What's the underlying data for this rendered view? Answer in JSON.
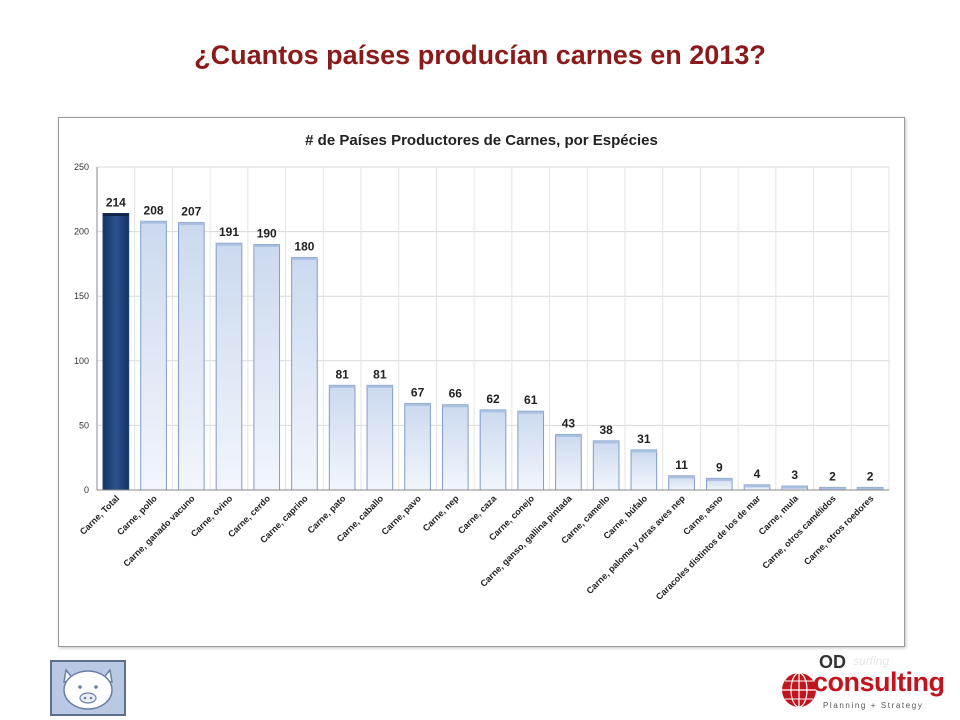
{
  "page": {
    "title": "¿Cuantos países producían carnes en 2013?"
  },
  "logos": {
    "brand_prefix": "OD",
    "brand_name": "consulting",
    "tagline": "Planning + Strategy",
    "faint_text": "surfing",
    "pig_icon": "pig-face-icon",
    "globe_icon": "globe-icon"
  },
  "colors": {
    "title": "#8b1a1a",
    "highlight_bar": "#1f3f73",
    "bar_top": "#cbd9ef",
    "bar_bottom": "#f2f6fc",
    "bar_stroke": "#7f9cc8",
    "brand_red": "#c0151f"
  },
  "chart_data": {
    "type": "bar",
    "title": "# de Países Productores de Carnes, por Espécies",
    "xlabel": "",
    "ylabel": "",
    "ylim": [
      0,
      250
    ],
    "yticks": [
      0,
      50,
      100,
      150,
      200,
      250
    ],
    "grid": true,
    "legend": "none",
    "highlight_index": 0,
    "categories": [
      "Carne, Total",
      "Carne, pollo",
      "Carne, ganado vacuno",
      "Carne, ovino",
      "Carne, cerdo",
      "Carne, caprino",
      "Carne, pato",
      "Carne, caballo",
      "Carne, pavo",
      "Carne, nep",
      "Carne, caza",
      "Carne, conejo",
      "Carne, ganso, gallina pintada",
      "Carne, camello",
      "Carne, búfalo",
      "Carne, paloma y otras aves nep",
      "Carne, asno",
      "Caracoles distintos de los de mar",
      "Carne, mula",
      "Carne, otros camélidos",
      "Carne, otros roedores"
    ],
    "values": [
      214,
      208,
      207,
      191,
      190,
      180,
      81,
      81,
      67,
      66,
      62,
      61,
      43,
      38,
      31,
      11,
      9,
      4,
      3,
      2,
      2
    ]
  }
}
